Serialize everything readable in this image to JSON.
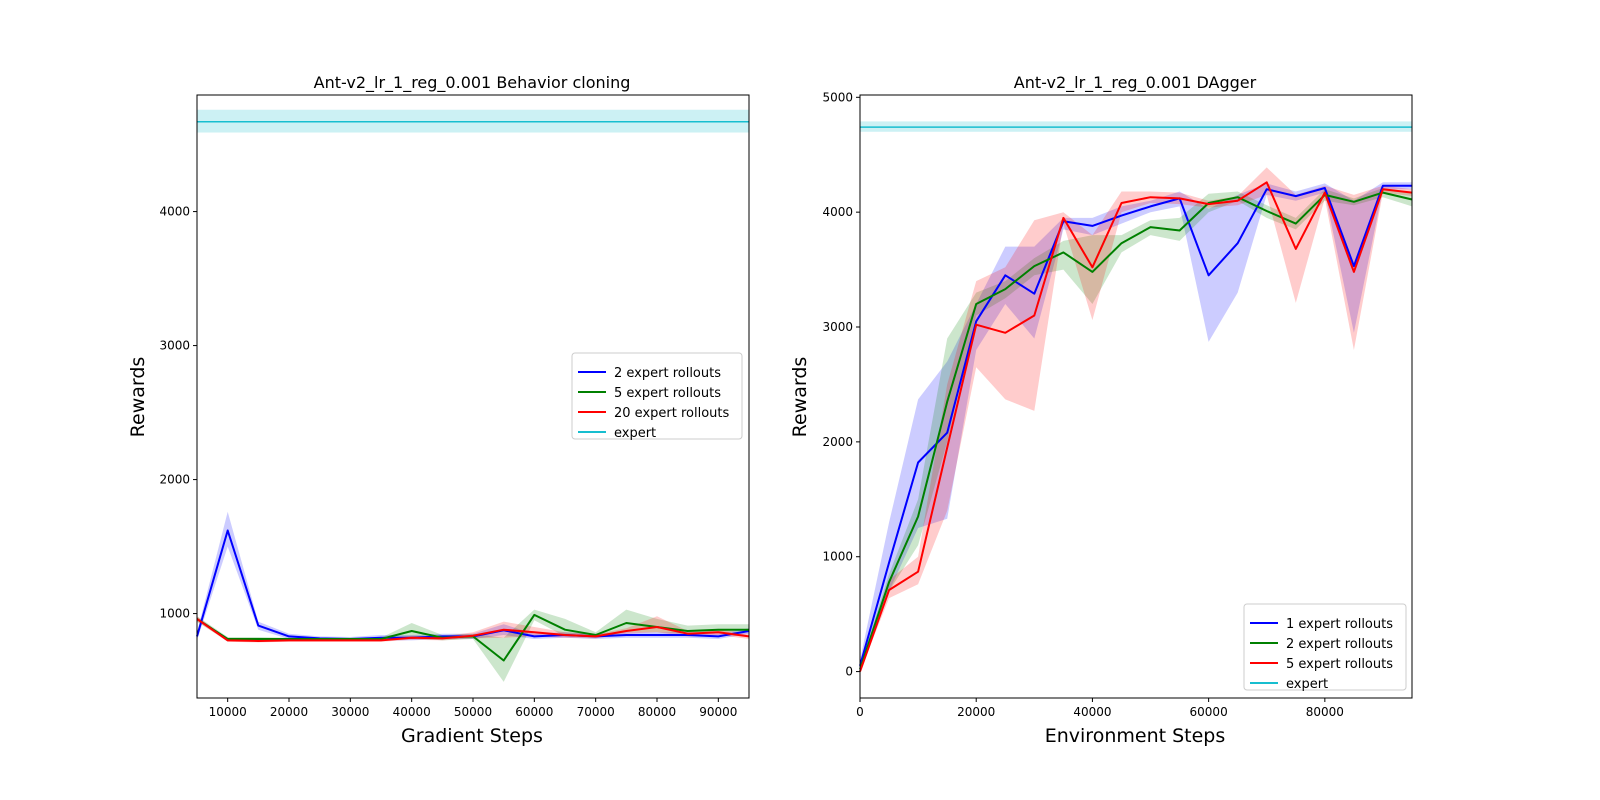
{
  "chart_data": [
    {
      "type": "line",
      "title": "Ant-v2_lr_1_reg_0.001 Behavior cloning",
      "xlabel": "Gradient Steps",
      "ylabel": "Rewards",
      "xlim": [
        5000,
        95000
      ],
      "ylim": [
        370,
        4870
      ],
      "xticks": [
        10000,
        20000,
        30000,
        40000,
        50000,
        60000,
        70000,
        80000,
        90000
      ],
      "yticks": [
        1000,
        2000,
        3000,
        4000
      ],
      "legend_position": "center-right",
      "x": [
        5000,
        10000,
        15000,
        20000,
        25000,
        30000,
        35000,
        40000,
        45000,
        50000,
        55000,
        60000,
        65000,
        70000,
        75000,
        80000,
        85000,
        90000,
        95000
      ],
      "expert": {
        "name": "expert",
        "color": "#17becf",
        "mean": 4670,
        "lower": 4590,
        "upper": 4760
      },
      "series": [
        {
          "name": "2 expert rollouts",
          "color": "#0000ff",
          "values": [
            830,
            1620,
            910,
            830,
            815,
            810,
            820,
            820,
            830,
            830,
            875,
            830,
            840,
            830,
            840,
            840,
            840,
            830,
            870
          ],
          "lower": [
            800,
            1500,
            880,
            810,
            800,
            795,
            800,
            800,
            810,
            810,
            840,
            810,
            820,
            810,
            820,
            820,
            820,
            810,
            850
          ],
          "upper": [
            860,
            1760,
            940,
            850,
            830,
            825,
            840,
            840,
            850,
            850,
            920,
            850,
            860,
            850,
            860,
            860,
            860,
            850,
            890
          ]
        },
        {
          "name": "5 expert rollouts",
          "color": "#008000",
          "values": [
            960,
            810,
            810,
            810,
            810,
            810,
            810,
            870,
            820,
            830,
            650,
            990,
            880,
            840,
            930,
            900,
            870,
            880,
            880
          ],
          "lower": [
            940,
            795,
            795,
            800,
            800,
            800,
            800,
            820,
            800,
            810,
            490,
            950,
            830,
            820,
            860,
            860,
            850,
            860,
            860
          ],
          "upper": [
            980,
            825,
            825,
            820,
            820,
            820,
            820,
            930,
            840,
            850,
            820,
            1030,
            960,
            860,
            1030,
            960,
            910,
            920,
            920
          ]
        },
        {
          "name": "20 expert rollouts",
          "color": "#ff0000",
          "values": [
            960,
            800,
            795,
            800,
            800,
            800,
            800,
            820,
            815,
            835,
            880,
            860,
            840,
            830,
            870,
            900,
            850,
            860,
            830
          ],
          "lower": [
            940,
            790,
            785,
            790,
            790,
            790,
            790,
            805,
            800,
            815,
            820,
            830,
            820,
            815,
            850,
            860,
            830,
            840,
            810
          ],
          "upper": [
            980,
            810,
            805,
            810,
            810,
            810,
            810,
            835,
            830,
            860,
            940,
            900,
            860,
            845,
            890,
            980,
            870,
            880,
            850
          ]
        }
      ]
    },
    {
      "type": "line",
      "title": "Ant-v2_lr_1_reg_0.001 DAgger",
      "xlabel": "Environment Steps",
      "ylabel": "Rewards",
      "xlim": [
        0,
        95000
      ],
      "ylim": [
        -230,
        5020
      ],
      "xticks": [
        0,
        20000,
        40000,
        60000,
        80000
      ],
      "yticks": [
        0,
        1000,
        2000,
        3000,
        4000,
        5000
      ],
      "legend_position": "lower-right",
      "x": [
        0,
        5000,
        10000,
        15000,
        20000,
        25000,
        30000,
        35000,
        40000,
        45000,
        50000,
        55000,
        60000,
        65000,
        70000,
        75000,
        80000,
        85000,
        90000,
        95000
      ],
      "expert": {
        "name": "expert",
        "color": "#17becf",
        "mean": 4740,
        "lower": 4700,
        "upper": 4790
      },
      "series": [
        {
          "name": "1 expert rollouts",
          "color": "#0000ff",
          "values": [
            50,
            950,
            1820,
            2080,
            3050,
            3450,
            3290,
            3920,
            3880,
            3970,
            4050,
            4120,
            3450,
            3730,
            4200,
            4140,
            4210,
            3530,
            4230,
            4230
          ],
          "lower": [
            0,
            700,
            1250,
            1330,
            2800,
            3200,
            2900,
            3850,
            3800,
            3900,
            4000,
            4050,
            2870,
            3300,
            4150,
            4100,
            4170,
            2950,
            4200,
            4200
          ],
          "upper": [
            100,
            1300,
            2370,
            2700,
            3200,
            3700,
            3700,
            3950,
            3950,
            4050,
            4100,
            4180,
            4030,
            4150,
            4250,
            4180,
            4250,
            4100,
            4260,
            4260
          ]
        },
        {
          "name": "2 expert rollouts",
          "color": "#008000",
          "values": [
            20,
            780,
            1350,
            2350,
            3200,
            3330,
            3530,
            3650,
            3480,
            3730,
            3870,
            3840,
            4080,
            4130,
            4010,
            3900,
            4150,
            4090,
            4170,
            4110
          ],
          "lower": [
            0,
            700,
            1100,
            2000,
            3100,
            3250,
            3450,
            3500,
            3200,
            3650,
            3800,
            3750,
            4000,
            4100,
            3950,
            3850,
            4100,
            4060,
            4130,
            4050
          ],
          "upper": [
            50,
            850,
            1500,
            2900,
            3300,
            3400,
            3600,
            3750,
            3800,
            3800,
            3930,
            3950,
            4160,
            4180,
            4060,
            3950,
            4200,
            4120,
            4210,
            4170
          ]
        },
        {
          "name": "5 expert rollouts",
          "color": "#ff0000",
          "values": [
            0,
            710,
            870,
            1950,
            3020,
            2950,
            3100,
            3950,
            3520,
            4080,
            4130,
            4120,
            4070,
            4100,
            4260,
            3680,
            4170,
            3480,
            4200,
            4170
          ],
          "lower": [
            0,
            640,
            760,
            1400,
            2650,
            2370,
            2270,
            3900,
            3060,
            4000,
            4080,
            4070,
            4040,
            4060,
            4150,
            3210,
            4120,
            2800,
            4170,
            4140
          ],
          "upper": [
            50,
            800,
            1000,
            2500,
            3400,
            3520,
            3930,
            4000,
            3800,
            4180,
            4180,
            4170,
            4100,
            4140,
            4390,
            4150,
            4230,
            4150,
            4230,
            4200
          ]
        }
      ]
    }
  ]
}
